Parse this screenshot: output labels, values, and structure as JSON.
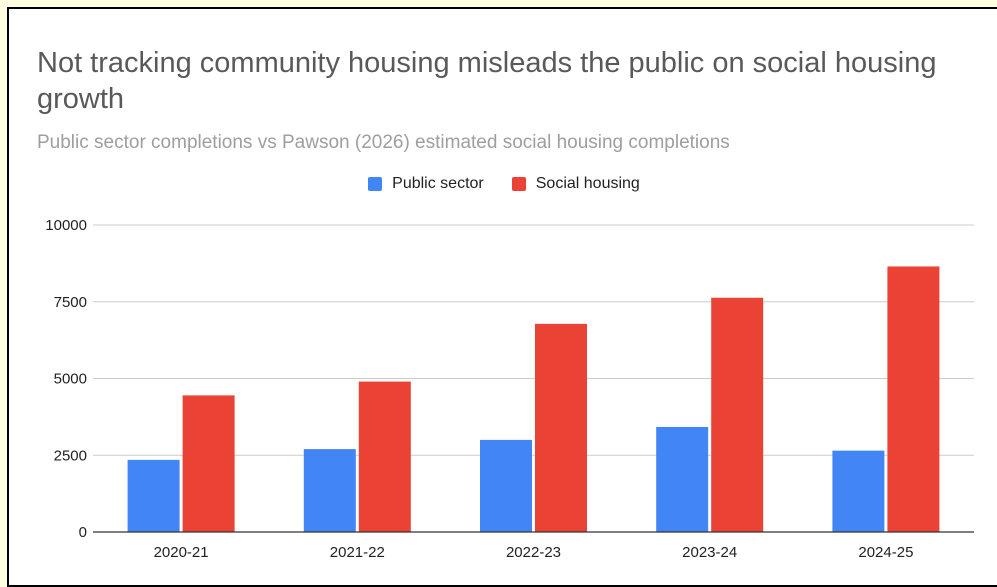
{
  "colors": {
    "public_sector": "#4285f4",
    "social_housing": "#ea4335",
    "gridline": "#cccccc",
    "baseline": "#333333",
    "page_background": "#fffde0"
  },
  "chart_data": {
    "type": "bar",
    "title": "Not tracking community housing misleads the public on social housing growth",
    "subtitle": "Public sector completions vs Pawson (2026) estimated social housing completions",
    "xlabel": "",
    "ylabel": "",
    "categories": [
      "2020-21",
      "2021-22",
      "2022-23",
      "2023-24",
      "2024-25"
    ],
    "series": [
      {
        "name": "Public sector",
        "values": [
          2350,
          2700,
          3000,
          3420,
          2650
        ]
      },
      {
        "name": "Social housing",
        "values": [
          4450,
          4900,
          6780,
          7630,
          8650
        ]
      }
    ],
    "ylim": [
      0,
      10000
    ],
    "yticks": [
      "0",
      "2500",
      "5000",
      "7500",
      "10000"
    ],
    "grid": true,
    "legend_position": "top-center"
  }
}
